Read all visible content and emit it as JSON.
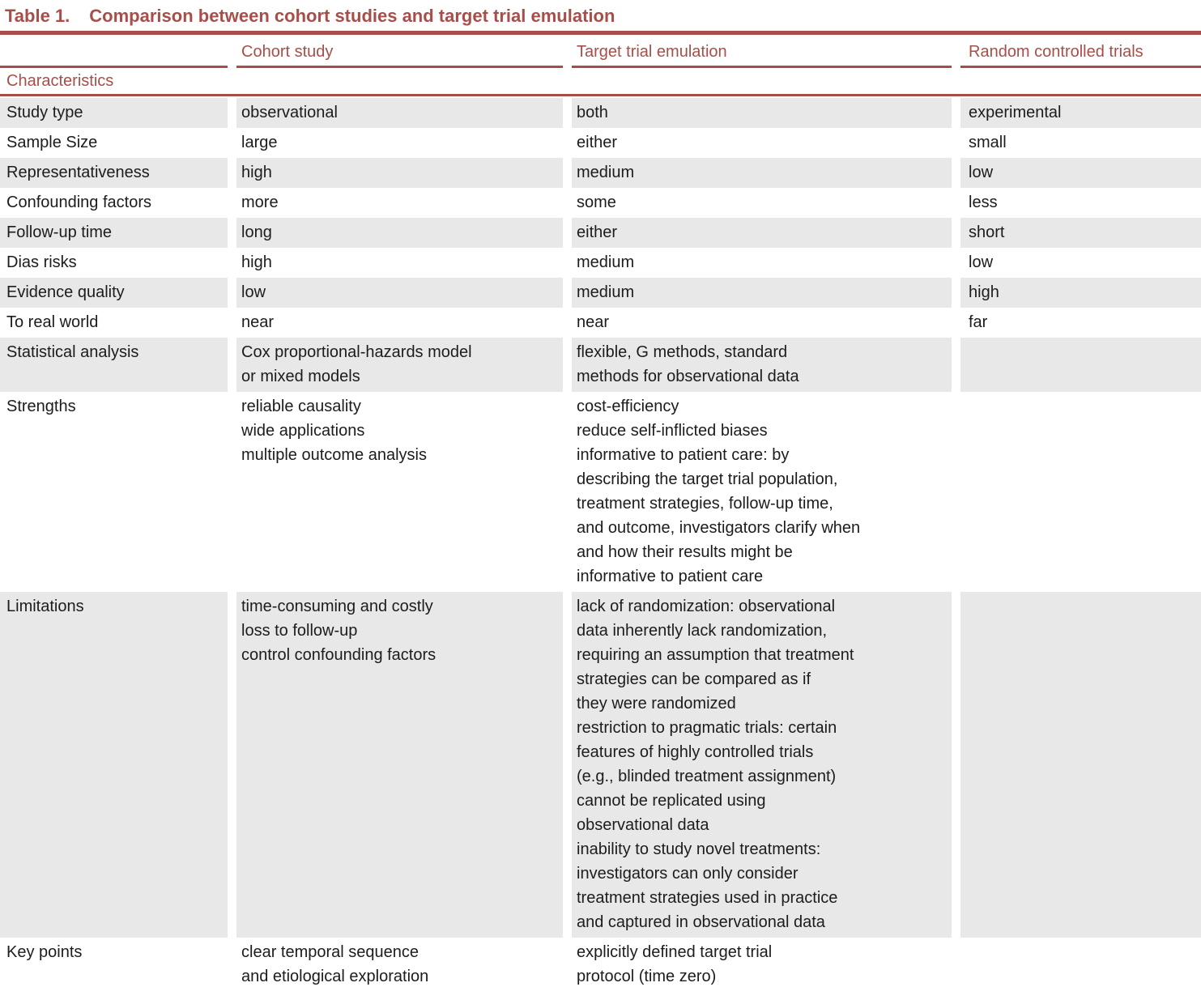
{
  "title": {
    "label": "Table 1.",
    "text": "Comparison between cohort studies and target trial emulation"
  },
  "header": {
    "col1": "",
    "col2": "Cohort study",
    "col3": "Target trial emulation",
    "col4": "Random controlled trials"
  },
  "section": {
    "label": "Characteristics"
  },
  "rows": [
    {
      "label": "Study type",
      "cohort": "observational",
      "target": "both",
      "rct": "experimental"
    },
    {
      "label": "Sample Size",
      "cohort": "large",
      "target": "either",
      "rct": "small"
    },
    {
      "label": "Representativeness",
      "cohort": "high",
      "target": "medium",
      "rct": "low"
    },
    {
      "label": "Confounding factors",
      "cohort": "more",
      "target": "some",
      "rct": "less"
    },
    {
      "label": "Follow-up time",
      "cohort": "long",
      "target": "either",
      "rct": "short"
    },
    {
      "label": "Dias risks",
      "cohort": "high",
      "target": "medium",
      "rct": "low"
    },
    {
      "label": "Evidence quality",
      "cohort": "low",
      "target": "medium",
      "rct": "high"
    },
    {
      "label": "To real world",
      "cohort": "near",
      "target": "near",
      "rct": "far"
    },
    {
      "label": "Statistical analysis",
      "cohort": "Cox proportional-hazards model\nor mixed models",
      "target": "flexible, G methods, standard\nmethods for observational data",
      "rct": ""
    },
    {
      "label": "Strengths",
      "cohort": "reliable causality\nwide applications\nmultiple outcome analysis",
      "target": "cost-efficiency\nreduce self-inflicted biases\ninformative to patient care: by\ndescribing the target trial population,\ntreatment strategies, follow-up time,\nand outcome, investigators clarify when\nand how their results might be\ninformative to patient care",
      "rct": ""
    },
    {
      "label": "Limitations",
      "cohort": "time-consuming and costly\nloss to follow-up\ncontrol confounding factors",
      "target": "lack of randomization: observational\ndata inherently lack randomization,\nrequiring an assumption that treatment\nstrategies can be compared as if\nthey were randomized\nrestriction to pragmatic trials: certain\nfeatures of highly controlled trials\n(e.g., blinded treatment assignment)\ncannot be replicated using\nobservational data\ninability to study novel treatments:\ninvestigators can only consider\ntreatment strategies used in practice\nand captured in observational data",
      "rct": ""
    },
    {
      "label": "Key points",
      "cohort": "clear temporal sequence\nand etiological exploration",
      "target": "explicitly defined target trial\nprotocol (time zero)",
      "rct": ""
    }
  ],
  "colors": {
    "accent": "#a84e4a",
    "row_shade": "#e8e8e8",
    "text": "#1c1c1c",
    "background": "#ffffff"
  }
}
